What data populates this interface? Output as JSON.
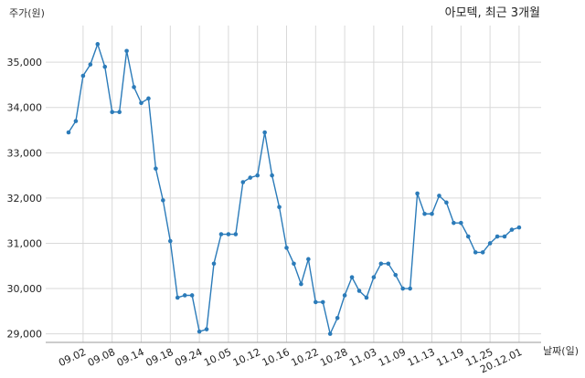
{
  "chart_data": {
    "type": "line",
    "title": "아모텍, 최근 3개월",
    "ylabel": "주가(원)",
    "xlabel": "날짜(일)",
    "ylim": [
      28700,
      35800
    ],
    "yticks": [
      29000,
      30000,
      31000,
      32000,
      33000,
      34000,
      35000
    ],
    "ytick_labels": [
      "29,000",
      "30,000",
      "31,000",
      "32,000",
      "33,000",
      "34,000",
      "35,000"
    ],
    "xtick_labels": [
      "09.02",
      "09.08",
      "09.14",
      "09.18",
      "09.24",
      "10.05",
      "10.12",
      "10.16",
      "10.22",
      "10.28",
      "11.03",
      "11.09",
      "11.13",
      "11.19",
      "11.25",
      "20.12.01"
    ],
    "xtick_index": [
      2,
      6,
      10,
      14,
      18,
      22,
      26,
      30,
      34,
      38,
      42,
      46,
      50,
      54,
      58,
      62
    ],
    "grid": true,
    "color": "#2b7bb9",
    "series": [
      {
        "values": [
          33450,
          33700,
          34700,
          34950,
          35400,
          34900,
          33900,
          33900,
          35250,
          34450,
          34100,
          34200,
          32650,
          31950,
          31050,
          29800,
          29850,
          29850,
          29050,
          29100,
          30550,
          31200,
          31200,
          31200,
          32350,
          32450,
          32500,
          33450,
          32500,
          31800,
          30900,
          30550,
          30100,
          30650,
          29700,
          29700,
          29000,
          29350,
          29850,
          30250,
          29950,
          29800,
          30250,
          30550,
          30550,
          30300,
          30000,
          30000,
          32100,
          31650,
          31650,
          32050,
          31900,
          31450,
          31450,
          31150,
          30800,
          30800,
          31000,
          31150,
          31150,
          31300,
          31350
        ]
      }
    ]
  }
}
